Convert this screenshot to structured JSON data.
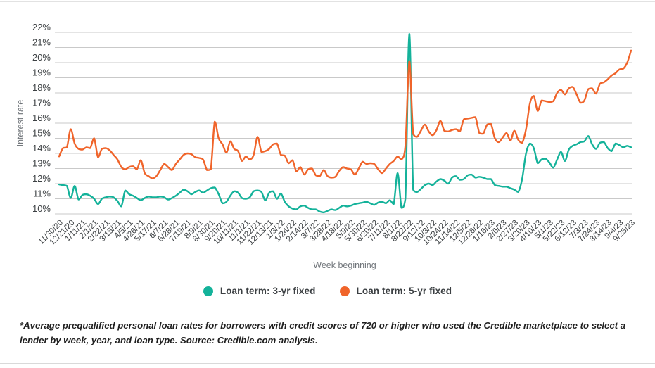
{
  "footnote": "*Average prequalified personal loan rates for borrowers with credit scores of 720 or higher who used the Credible marketplace to select a lender by week, year, and loan type. Source: Credible.com analysis.",
  "chart_data": {
    "type": "line",
    "title": "",
    "xlabel": "Week beginning",
    "ylabel": "Interest rate",
    "ylim": [
      10,
      22
    ],
    "y_step": 1,
    "y_tick_suffix": "%",
    "grid": true,
    "legend_position": "bottom",
    "x_frequency": "weekly",
    "x_tick_every": 3,
    "x_tick_labels": [
      "11/30/20",
      "12/21/20",
      "1/11/21",
      "2/1/21",
      "2/22/21",
      "3/15/21",
      "4/5/21",
      "4/26/21",
      "5/17/21",
      "6/7/21",
      "6/28/21",
      "7/19/21",
      "8/9/21",
      "8/30/21",
      "9/20/21",
      "10/11/21",
      "11/1/21",
      "11/22/21",
      "12/13/21",
      "1/3/22",
      "1/24/22",
      "2/14/22",
      "3/7/22",
      "3/28/22",
      "4/18/22",
      "5/9/22",
      "5/30/22",
      "6/20/22",
      "7/11/22",
      "8/1/22",
      "8/22/22",
      "9/12/22",
      "10/3/22",
      "10/24/22",
      "11/14/22",
      "12/5/22",
      "12/26/22",
      "1/16/23",
      "2/6/23",
      "2/27/23",
      "3/20/23",
      "4/10/23",
      "5/1/23",
      "5/22/23",
      "6/12/23",
      "7/3/23",
      "7/24/23",
      "8/14/23",
      "9/4/23",
      "9/25/23"
    ],
    "series": [
      {
        "name": "Loan term: 3-yr fixed",
        "color": "#14b29a",
        "values": [
          11.95,
          11.9,
          11.85,
          11.05,
          11.85,
          10.95,
          11.25,
          11.3,
          11.2,
          11.0,
          10.65,
          11.0,
          11.1,
          11.15,
          11.1,
          10.85,
          10.5,
          11.55,
          11.3,
          11.2,
          11.05,
          10.9,
          11.05,
          11.15,
          11.1,
          11.1,
          11.15,
          11.1,
          10.95,
          11.05,
          11.2,
          11.4,
          11.6,
          11.5,
          11.3,
          11.45,
          11.55,
          11.4,
          11.55,
          11.7,
          11.75,
          11.3,
          10.7,
          10.8,
          11.2,
          11.5,
          11.4,
          11.05,
          11.0,
          11.1,
          11.5,
          11.55,
          11.45,
          10.9,
          11.4,
          11.5,
          11.0,
          11.35,
          10.8,
          10.5,
          10.35,
          10.3,
          10.5,
          10.55,
          10.4,
          10.3,
          10.3,
          10.15,
          10.1,
          10.2,
          10.3,
          10.25,
          10.4,
          10.55,
          10.5,
          10.55,
          10.65,
          10.7,
          10.75,
          10.8,
          10.7,
          10.6,
          10.75,
          10.8,
          10.7,
          10.9,
          10.65,
          12.7,
          10.4,
          11.0,
          21.9,
          11.6,
          11.45,
          11.65,
          11.9,
          12.0,
          11.9,
          12.15,
          12.3,
          12.2,
          12.0,
          12.4,
          12.5,
          12.25,
          12.3,
          12.55,
          12.6,
          12.4,
          12.45,
          12.4,
          12.3,
          12.3,
          11.9,
          11.85,
          11.8,
          11.8,
          11.7,
          11.6,
          11.45,
          12.3,
          14.0,
          14.65,
          14.35,
          13.35,
          13.6,
          13.65,
          13.4,
          13.05,
          13.6,
          14.1,
          13.5,
          14.25,
          14.5,
          14.6,
          14.75,
          14.8,
          15.15,
          14.6,
          14.3,
          14.7,
          14.75,
          14.35,
          14.15,
          14.65,
          14.55,
          14.4,
          14.5,
          14.4
        ]
      },
      {
        "name": "Loan term: 5-yr fixed",
        "color": "#f0642a",
        "values": [
          13.8,
          14.35,
          14.4,
          15.6,
          14.65,
          14.3,
          14.25,
          14.4,
          14.35,
          15.0,
          13.75,
          14.3,
          14.35,
          14.2,
          13.9,
          13.6,
          13.1,
          12.95,
          13.1,
          13.15,
          12.95,
          13.55,
          12.7,
          12.5,
          12.35,
          12.5,
          12.9,
          13.3,
          13.1,
          12.9,
          13.3,
          13.6,
          13.9,
          14.0,
          13.95,
          13.75,
          13.7,
          13.6,
          12.9,
          12.95,
          16.1,
          15.0,
          14.6,
          14.05,
          14.8,
          14.3,
          14.15,
          13.5,
          13.8,
          13.6,
          13.9,
          15.1,
          14.1,
          14.15,
          14.3,
          14.6,
          14.65,
          13.9,
          13.85,
          13.35,
          13.55,
          12.8,
          13.1,
          12.6,
          12.95,
          13.0,
          12.55,
          12.5,
          12.9,
          12.5,
          12.4,
          12.45,
          12.85,
          13.1,
          13.0,
          12.95,
          12.6,
          13.0,
          13.45,
          13.3,
          13.35,
          13.3,
          12.95,
          12.7,
          13.0,
          13.3,
          13.5,
          13.8,
          13.6,
          14.5,
          20.1,
          15.3,
          15.1,
          15.5,
          15.9,
          15.45,
          15.2,
          15.55,
          16.15,
          15.5,
          15.45,
          15.55,
          15.6,
          15.45,
          16.25,
          16.3,
          16.35,
          16.4,
          15.35,
          15.3,
          15.9,
          15.95,
          15.0,
          14.75,
          15.05,
          15.35,
          14.85,
          15.5,
          14.9,
          14.7,
          15.6,
          17.3,
          17.8,
          16.8,
          17.5,
          17.45,
          17.4,
          17.45,
          18.0,
          18.2,
          17.9,
          18.3,
          18.4,
          17.9,
          17.35,
          17.5,
          18.25,
          18.3,
          17.95,
          18.6,
          18.7,
          18.9,
          19.15,
          19.3,
          19.55,
          19.6,
          20.0,
          20.8
        ]
      }
    ]
  },
  "colors": {
    "gridline": "#c9c9c9",
    "tick_text": "#3c4043",
    "axis_title": "#70757a"
  }
}
